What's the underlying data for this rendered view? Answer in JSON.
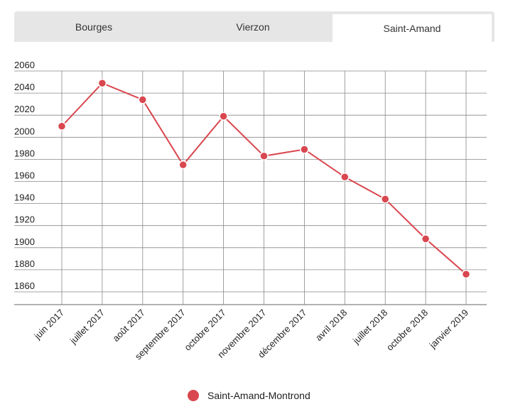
{
  "tabs": [
    {
      "label": "Bourges",
      "active": false
    },
    {
      "label": "Vierzon",
      "active": false
    },
    {
      "label": "Saint-Amand",
      "active": true
    }
  ],
  "colors": {
    "series": "#d9474f",
    "grid": "#888888",
    "tab_bg": "#e6e6e6"
  },
  "chart_data": {
    "type": "line",
    "title": "",
    "xlabel": "",
    "ylabel": "",
    "ylim": [
      1860,
      2060
    ],
    "yticks": [
      1860,
      1880,
      1900,
      1920,
      1940,
      1960,
      1980,
      2000,
      2020,
      2040,
      2060
    ],
    "categories": [
      "juin 2017",
      "juillet 2017",
      "août 2017",
      "septembre 2017",
      "octobre 2017",
      "novembre 2017",
      "décembre 2017",
      "avril 2018",
      "juillet 2018",
      "octobre 2018",
      "janvier 2019"
    ],
    "series": [
      {
        "name": "Saint-Amand-Montrond",
        "color": "#d9474f",
        "values": [
          2010,
          2049,
          2034,
          1975,
          2019,
          1983,
          1989,
          1964,
          1944,
          1908,
          1876
        ]
      }
    ],
    "grid": true,
    "legend": "bottom-center"
  }
}
